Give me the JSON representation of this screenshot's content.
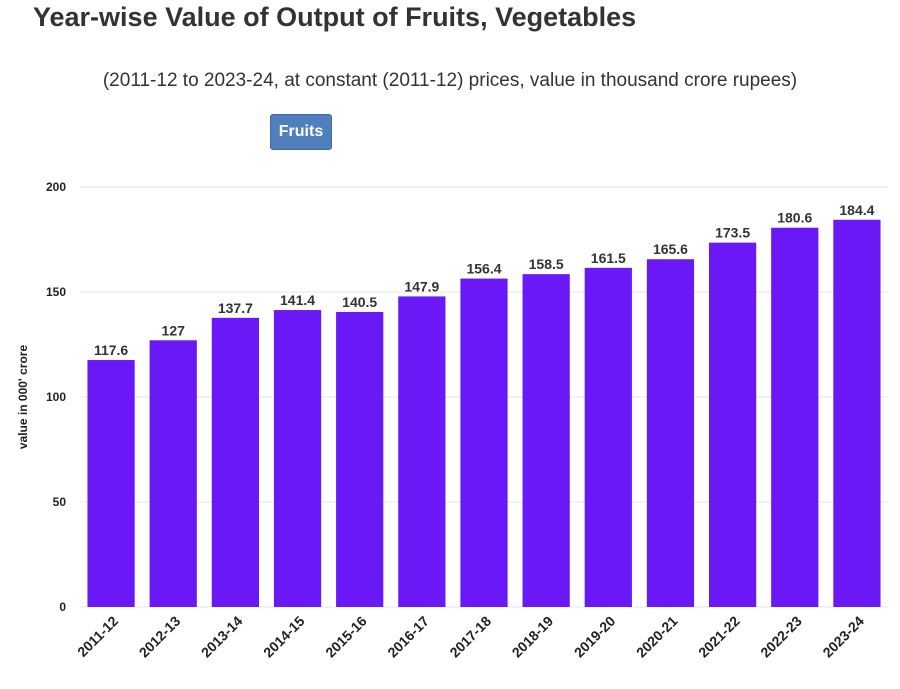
{
  "header": {
    "title": "Year-wise Value of Output of Fruits, Vegetables",
    "subtitle": "(2011-12 to 2023-24, at constant (2011-12) prices, value in thousand crore rupees)"
  },
  "filter": {
    "selected_label": "Fruits"
  },
  "colors": {
    "bar": "#6a19f6",
    "button": "#4f7fbd",
    "grid": "#e6e6e6",
    "text": "#333333"
  },
  "chart_data": {
    "type": "bar",
    "categories": [
      "2011-12",
      "2012-13",
      "2013-14",
      "2014-15",
      "2015-16",
      "2016-17",
      "2017-18",
      "2018-19",
      "2019-20",
      "2020-21",
      "2021-22",
      "2022-23",
      "2023-24"
    ],
    "values": [
      117.6,
      127,
      137.7,
      141.4,
      140.5,
      147.9,
      156.4,
      158.5,
      161.5,
      165.6,
      173.5,
      180.6,
      184.4
    ],
    "ylabel": "value in 000' crore",
    "xlabel": "",
    "ylim": [
      0,
      200
    ],
    "yticks": [
      0,
      50,
      100,
      150,
      200
    ],
    "grid": true,
    "data_labels": true
  }
}
